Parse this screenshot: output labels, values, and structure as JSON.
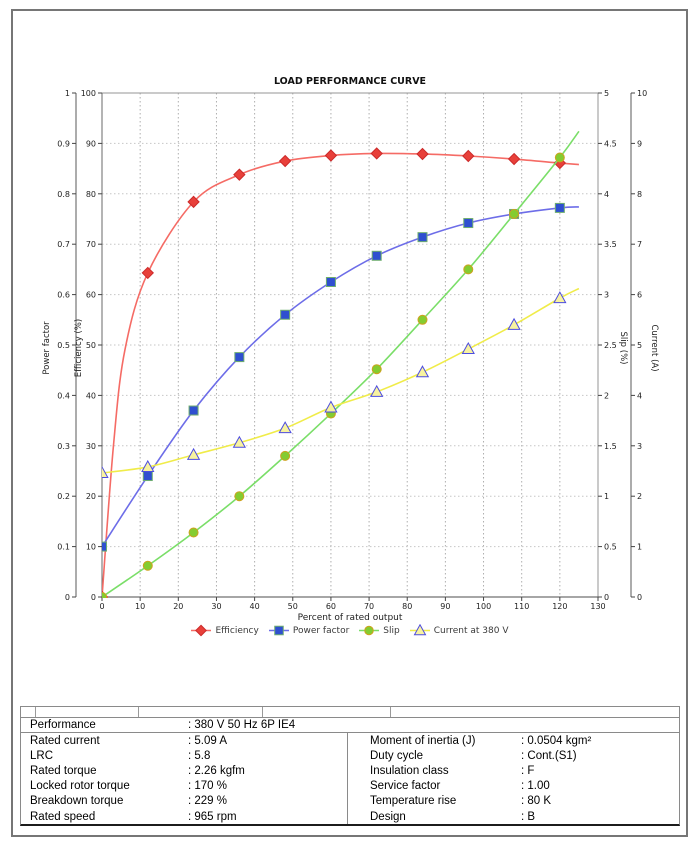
{
  "chart_data": {
    "type": "line",
    "title": "LOAD PERFORMANCE CURVE",
    "xlabel": "Percent of rated output",
    "xlim": [
      0,
      130
    ],
    "xtick_step": 10,
    "grid": true,
    "legend_position": "bottom",
    "axes": {
      "power_factor": {
        "title": "Power factor",
        "min": 0,
        "max": 1,
        "step": 0.1,
        "side": "left-outer"
      },
      "efficiency": {
        "title": "Efficiency (%)",
        "min": 0,
        "max": 100,
        "step": 10,
        "side": "left"
      },
      "slip": {
        "title": "Slip (%)",
        "min": 0,
        "max": 5,
        "step": 0.5,
        "side": "right"
      },
      "current": {
        "title": "Current (A)",
        "min": 0,
        "max": 10,
        "step": 1,
        "side": "right-outer"
      }
    },
    "x": [
      0,
      12,
      24,
      36,
      48,
      60,
      72,
      84,
      96,
      108,
      120
    ],
    "series": [
      {
        "name": "Efficiency",
        "axis": "efficiency",
        "marker": "diamond",
        "line_color": "#f56b65",
        "marker_fill": "#e8403a",
        "marker_stroke": "#cc2a2a",
        "values": [
          0,
          64.3,
          78.4,
          83.8,
          86.5,
          87.6,
          88.0,
          87.9,
          87.5,
          86.9,
          86.1
        ],
        "line_extra_points": [
          {
            "x": 3,
            "y": 30
          },
          {
            "x": 6,
            "y": 49
          },
          {
            "x": 125,
            "y": 85.8
          }
        ]
      },
      {
        "name": "Power factor",
        "axis": "power_factor",
        "marker": "square",
        "line_color": "#6d6de8",
        "marker_fill": "#2f4fd0",
        "marker_stroke": "#6fae6f",
        "values": [
          0.1,
          0.24,
          0.37,
          0.476,
          0.56,
          0.625,
          0.677,
          0.714,
          0.742,
          0.76,
          0.772
        ],
        "line_extra_points": [
          {
            "x": 125,
            "y": 0.774
          }
        ]
      },
      {
        "name": "Slip",
        "axis": "slip",
        "marker": "circle",
        "line_color": "#7ade68",
        "marker_fill": "#84cc30",
        "marker_stroke": "#cfa11e",
        "values": [
          0,
          0.31,
          0.64,
          1.0,
          1.4,
          1.82,
          2.26,
          2.75,
          3.25,
          3.8,
          4.36
        ],
        "line_extra_points": [
          {
            "x": 125,
            "y": 4.62
          }
        ]
      },
      {
        "name": "Current at 380 V",
        "axis": "current",
        "marker": "triangle",
        "line_color": "#f0ec49",
        "marker_fill": "#f8f3a0",
        "marker_stroke": "#4c4ce0",
        "values": [
          2.46,
          2.58,
          2.82,
          3.06,
          3.35,
          3.76,
          4.07,
          4.46,
          4.92,
          5.4,
          5.93
        ],
        "line_extra_points": [
          {
            "x": 125,
            "y": 6.12
          }
        ]
      }
    ]
  },
  "table": {
    "performance_row": {
      "label": "Performance",
      "value": ": 380 V 50 Hz 6P IE4"
    },
    "left_rows": [
      {
        "label": "Rated current",
        "value": ": 5.09 A"
      },
      {
        "label": "LRC",
        "value": ": 5.8"
      },
      {
        "label": "Rated torque",
        "value": ": 2.26 kgfm"
      },
      {
        "label": "Locked rotor torque",
        "value": ": 170 %"
      },
      {
        "label": "Breakdown torque",
        "value": ": 229 %"
      },
      {
        "label": "Rated speed",
        "value": ": 965 rpm"
      }
    ],
    "right_rows": [
      {
        "label": "Moment of inertia (J)",
        "value": ": 0.0504 kgm²"
      },
      {
        "label": "Duty cycle",
        "value": ": Cont.(S1)"
      },
      {
        "label": "Insulation class",
        "value": ": F"
      },
      {
        "label": "Service factor",
        "value": ": 1.00"
      },
      {
        "label": "Temperature rise",
        "value": ": 80 K"
      },
      {
        "label": "Design",
        "value": ": B"
      }
    ]
  }
}
